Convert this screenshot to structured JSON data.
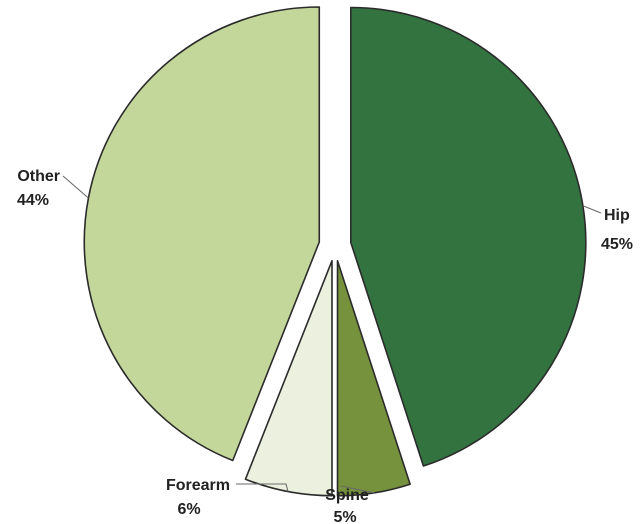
{
  "chart_data": {
    "type": "pie",
    "title": "",
    "exploded": true,
    "legend": "none",
    "slices": [
      {
        "label": "Hip",
        "value": 45,
        "pct_label": "45%",
        "color": "#327340"
      },
      {
        "label": "Spine",
        "value": 5,
        "pct_label": "5%",
        "color": "#76923c"
      },
      {
        "label": "Forearm",
        "value": 6,
        "pct_label": "6%",
        "color": "#ebf1de"
      },
      {
        "label": "Other",
        "value": 44,
        "pct_label": "44%",
        "color": "#c4d79b"
      }
    ]
  }
}
